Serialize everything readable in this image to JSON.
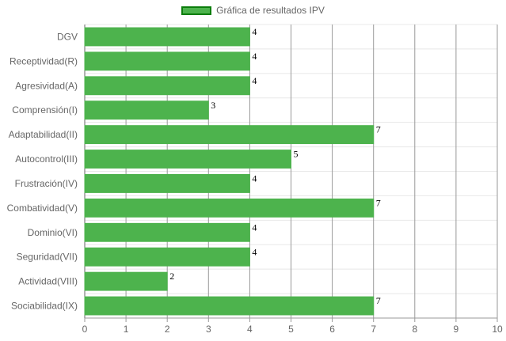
{
  "chart_data": {
    "type": "bar",
    "orientation": "horizontal",
    "categories": [
      "DGV",
      "Receptividad(R)",
      "Agresividad(A)",
      "Comprensión(I)",
      "Adaptabilidad(II)",
      "Autocontrol(III)",
      "Frustración(IV)",
      "Combatividad(V)",
      "Dominio(VI)",
      "Seguridad(VII)",
      "Actividad(VIII)",
      "Sociabilidad(IX)"
    ],
    "series": [
      {
        "name": "Gráfica de resultados IPV",
        "values": [
          4,
          4,
          4,
          3,
          7,
          5,
          4,
          7,
          4,
          4,
          2,
          7
        ]
      }
    ],
    "xlim": [
      0,
      10
    ],
    "xticks": [
      "0",
      "1",
      "2",
      "3",
      "4",
      "5",
      "6",
      "7",
      "8",
      "9",
      "10"
    ],
    "grid": true,
    "legend_position": "top-center",
    "colors": {
      "bar_fill": "#4db34d",
      "bar_border": "#0b7d0b",
      "grid": "#999999"
    }
  }
}
